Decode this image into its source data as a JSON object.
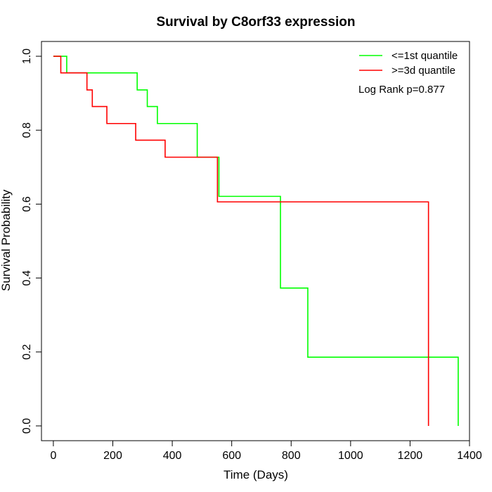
{
  "chart_data": {
    "type": "line",
    "title": "Survival by C8orf33 expression",
    "xlabel": "Time (Days)",
    "ylabel": "Survival Probability",
    "xlim": [
      -40,
      1400
    ],
    "ylim": [
      -0.04,
      1.04
    ],
    "x_ticks": [
      "0",
      "200",
      "400",
      "600",
      "800",
      "1000",
      "1200",
      "1400"
    ],
    "y_ticks": [
      "0.0",
      "0.2",
      "0.4",
      "0.6",
      "0.8",
      "1.0"
    ],
    "x_tick_values": [
      0,
      200,
      400,
      600,
      800,
      1000,
      1200,
      1400
    ],
    "y_tick_values": [
      0,
      0.2,
      0.4,
      0.6,
      0.8,
      1.0
    ],
    "grid": false,
    "legend_position": "top-right",
    "annotation": "Log Rank p=0.877",
    "series": [
      {
        "name": "<=1st quantile",
        "color": "#00ff00",
        "x": [
          0,
          45,
          282,
          316,
          350,
          484,
          557,
          764,
          856,
          1362
        ],
        "y": [
          1.0,
          0.955,
          0.909,
          0.864,
          0.818,
          0.727,
          0.621,
          0.373,
          0.186,
          0.0
        ]
      },
      {
        "name": ">=3d quantile",
        "color": "#ff0000",
        "x": [
          0,
          25,
          113,
          131,
          180,
          277,
          376,
          552,
          1262
        ],
        "y": [
          1.0,
          0.955,
          0.909,
          0.864,
          0.818,
          0.773,
          0.727,
          0.606,
          0.0
        ]
      }
    ]
  }
}
